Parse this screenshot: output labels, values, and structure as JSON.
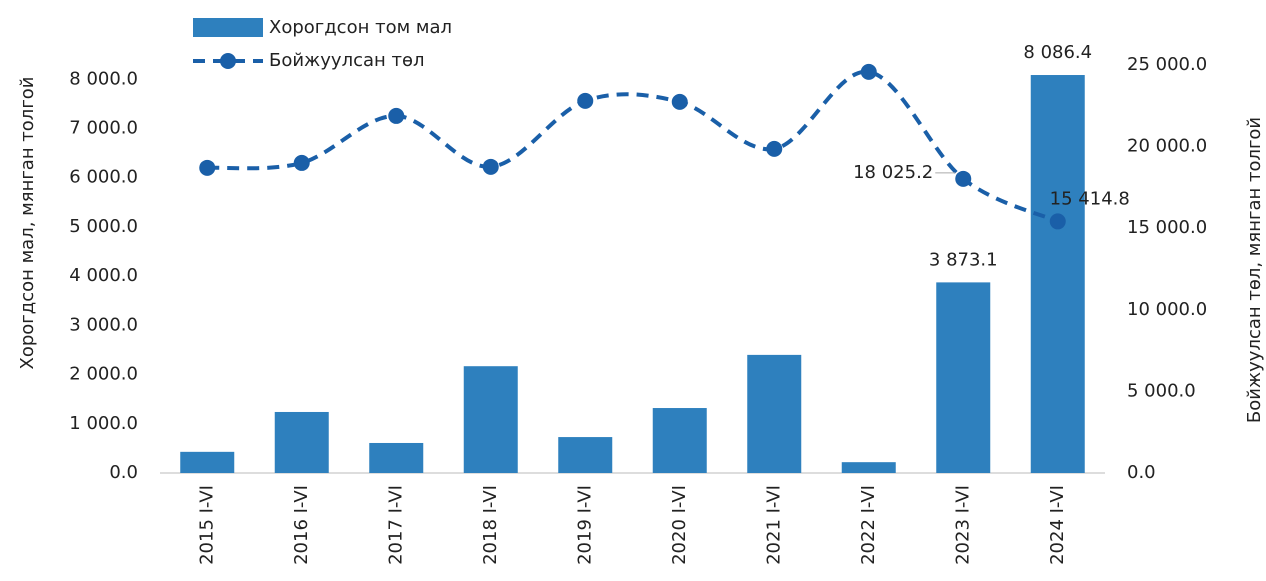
{
  "chart_data": {
    "type": "bar_line",
    "categories": [
      "2015 I-VI",
      "2016 I-VI",
      "2017 I-VI",
      "2018 I-VI",
      "2019 I-VI",
      "2020 I-VI",
      "2021 I-VI",
      "2022 I-VI",
      "2023 I-VI",
      "2024 I-VI"
    ],
    "series": [
      {
        "name": "Хорогдсон том мал",
        "type": "bar",
        "color": "#2e80be",
        "axis": "y",
        "values": [
          430,
          1240,
          610,
          2170,
          730,
          1320,
          2400,
          220,
          3873.1,
          8086.4
        ],
        "value_labels": [
          null,
          null,
          null,
          null,
          null,
          null,
          null,
          null,
          "3 873.1",
          "8 086.4"
        ]
      },
      {
        "name": "Бойжуулсан төл",
        "type": "line",
        "color": "#1a5fa8",
        "axis": "y2",
        "values": [
          18700,
          19000,
          21880,
          18760,
          22800,
          22740,
          19860,
          24580,
          18025.2,
          15414.8
        ],
        "value_labels": [
          null,
          null,
          null,
          null,
          null,
          null,
          null,
          null,
          "18 025.2",
          "15 414.8"
        ]
      }
    ],
    "ylabel": "Хорогдсон мал, мянган толгой",
    "y2label": "Бойжуулсан төл, мянган толгой",
    "ylim": [
      0,
      8290
    ],
    "yticks": [
      {
        "value": 0,
        "label": "0.0"
      },
      {
        "value": 1000,
        "label": "1 000.0"
      },
      {
        "value": 2000,
        "label": "2 000.0"
      },
      {
        "value": 3000,
        "label": "3 000.0"
      },
      {
        "value": 4000,
        "label": "4 000.0"
      },
      {
        "value": 5000,
        "label": "5 000.0"
      },
      {
        "value": 6000,
        "label": "6 000.0"
      },
      {
        "value": 7000,
        "label": "7 000.0"
      },
      {
        "value": 8000,
        "label": "8 000.0"
      }
    ],
    "y2lim": [
      0,
      25000
    ],
    "y2ticks": [
      {
        "value": 0,
        "label": "0.0"
      },
      {
        "value": 5000,
        "label": "5 000.0"
      },
      {
        "value": 10000,
        "label": "10 000.0"
      },
      {
        "value": 15000,
        "label": "15 000.0"
      },
      {
        "value": 20000,
        "label": "20 000.0"
      },
      {
        "value": 25000,
        "label": "25 000.0"
      }
    ],
    "legend": "top-left"
  }
}
